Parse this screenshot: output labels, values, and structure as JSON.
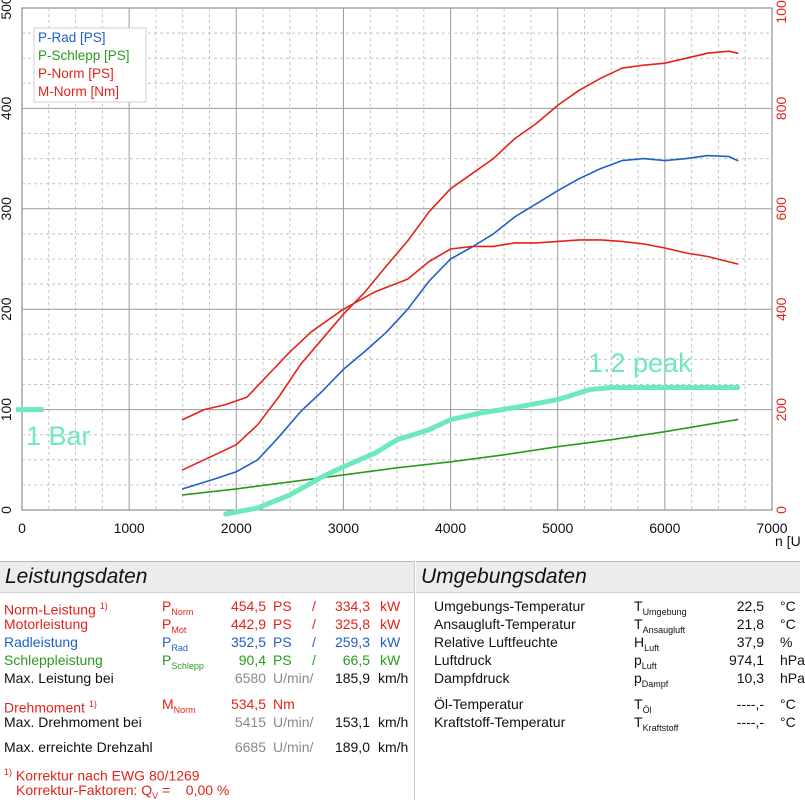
{
  "chart_data": {
    "type": "line",
    "xlabel": "n [U",
    "x_ticks": [
      "0",
      "1000",
      "2000",
      "3000",
      "4000",
      "5000",
      "6000",
      "7000"
    ],
    "y_left_ticks": [
      "0",
      "100",
      "200",
      "300",
      "400",
      "500"
    ],
    "y_right_ticks": [
      "0",
      "200",
      "400",
      "600",
      "800",
      "1000"
    ],
    "xlim": [
      0,
      7000
    ],
    "ylim_left": [
      0,
      500
    ],
    "ylim_right": [
      0,
      1000
    ],
    "grid": true,
    "legend_position": "top-left",
    "colors": {
      "rad": "#1f5fc8",
      "schlepp": "#2a9a1e",
      "norm": "#e2231a",
      "moment": "#e2231a",
      "boost": "#6ee8c0",
      "axis_right": "#e2231a"
    },
    "series": [
      {
        "name": "P-Rad [PS]",
        "axis": "left",
        "color": "#1f5fc8",
        "x": [
          1500,
          1800,
          2000,
          2200,
          2400,
          2600,
          2800,
          3000,
          3200,
          3400,
          3600,
          3800,
          4000,
          4200,
          4400,
          4600,
          4800,
          5000,
          5200,
          5400,
          5600,
          5800,
          6000,
          6200,
          6400,
          6600,
          6680
        ],
        "y": [
          21,
          31,
          38,
          50,
          73,
          98,
          118,
          140,
          158,
          177,
          200,
          228,
          250,
          262,
          275,
          292,
          305,
          318,
          330,
          340,
          348,
          350,
          348,
          350,
          353,
          352,
          348
        ]
      },
      {
        "name": "P-Schlepp [PS]",
        "axis": "left",
        "color": "#2a9a1e",
        "x": [
          1500,
          2000,
          2500,
          3000,
          3500,
          4000,
          4500,
          5000,
          5500,
          6000,
          6500,
          6680
        ],
        "y": [
          15,
          21,
          28,
          35,
          42,
          48,
          55,
          63,
          70,
          78,
          87,
          90
        ]
      },
      {
        "name": "P-Norm [PS]",
        "axis": "left",
        "color": "#e2231a",
        "x": [
          1500,
          1800,
          2000,
          2200,
          2400,
          2600,
          2800,
          3000,
          3200,
          3400,
          3600,
          3800,
          4000,
          4200,
          4400,
          4600,
          4800,
          5000,
          5200,
          5400,
          5600,
          5800,
          6000,
          6200,
          6400,
          6600,
          6680
        ],
        "y": [
          40,
          55,
          65,
          85,
          113,
          145,
          170,
          195,
          217,
          243,
          268,
          297,
          320,
          335,
          350,
          370,
          385,
          403,
          418,
          430,
          440,
          443,
          445,
          450,
          455,
          457,
          455
        ]
      },
      {
        "name": "M-Norm [Nm]",
        "axis": "right",
        "color": "#e2231a",
        "x": [
          1500,
          1700,
          1900,
          2100,
          2300,
          2500,
          2700,
          3000,
          3300,
          3600,
          3800,
          4000,
          4200,
          4400,
          4600,
          4800,
          5000,
          5200,
          5400,
          5600,
          5800,
          6000,
          6200,
          6400,
          6680
        ],
        "y": [
          180,
          200,
          210,
          225,
          270,
          315,
          355,
          400,
          435,
          460,
          495,
          520,
          525,
          525,
          532,
          532,
          535,
          538,
          538,
          535,
          530,
          522,
          512,
          505,
          490
        ]
      },
      {
        "name": "boost",
        "axis": "left",
        "color": "#6ee8c0",
        "x": [
          1900,
          2200,
          2500,
          2800,
          3000,
          3300,
          3500,
          3800,
          4000,
          4300,
          4600,
          5000,
          5300,
          5500,
          6000,
          6500,
          6680
        ],
        "y": [
          -4,
          2,
          15,
          33,
          43,
          57,
          70,
          80,
          90,
          97,
          102,
          110,
          120,
          122,
          122,
          122,
          122
        ]
      }
    ],
    "annotations": [
      "1 Bar",
      "1.2 peak"
    ]
  },
  "legend": [
    {
      "label": "P-Rad [PS]",
      "color": "#1f5fc8"
    },
    {
      "label": "P-Schlepp [PS]",
      "color": "#2a9a1e"
    },
    {
      "label": "P-Norm [PS]",
      "color": "#e2231a"
    },
    {
      "label": "M-Norm [Nm]",
      "color": "#e2231a"
    }
  ],
  "annotations": {
    "bar": "1 Bar",
    "peak": "1.2 peak"
  },
  "leistung": {
    "title": "Leistungsdaten",
    "norm": {
      "label": "Norm-Leistung",
      "footnote": "1)",
      "sym": "P",
      "sub": "Norm",
      "ps": "454,5",
      "ps_unit": "PS",
      "sep": "/",
      "kw": "334,3",
      "kw_unit": "kW"
    },
    "motor": {
      "label": "Motorleistung",
      "sym": "P",
      "sub": "Mot",
      "ps": "442,9",
      "ps_unit": "PS",
      "sep": "/",
      "kw": "325,8",
      "kw_unit": "kW"
    },
    "rad": {
      "label": "Radleistung",
      "sym": "P",
      "sub": "Rad",
      "ps": "352,5",
      "ps_unit": "PS",
      "sep": "/",
      "kw": "259,3",
      "kw_unit": "kW"
    },
    "schlepp": {
      "label": "Schleppleistung",
      "sym": "P",
      "sub": "Schlepp",
      "ps": "90,4",
      "ps_unit": "PS",
      "sep": "/",
      "kw": "66,5",
      "kw_unit": "kW"
    },
    "max_bei": {
      "label": "Max. Leistung bei",
      "rpm": "6580",
      "rpm_unit": "U/min/",
      "kmh": "185,9",
      "kmh_unit": "km/h"
    },
    "moment": {
      "label": "Drehmoment",
      "footnote": "1)",
      "sym": "M",
      "sub": "Norm",
      "nm": "534,5",
      "nm_unit": "Nm"
    },
    "moment_bei": {
      "label": "Max. Drehmoment bei",
      "rpm": "5415",
      "rpm_unit": "U/min/",
      "kmh": "153,1",
      "kmh_unit": "km/h"
    },
    "drehzahl": {
      "label": "Max. erreichte Drehzahl",
      "rpm": "6685",
      "rpm_unit": "U/min/",
      "kmh": "189,0",
      "kmh_unit": "km/h"
    },
    "korrektur": {
      "footnote": "1)",
      "text": "Korrektur nach EWG 80/1269",
      "faktor_label": "Korrektur-Faktoren: Q",
      "faktor_sub": "V",
      "faktor_value": "=    0,00 %"
    }
  },
  "umgebung": {
    "title": "Umgebungsdaten",
    "rows": [
      {
        "label": "Umgebungs-Temperatur",
        "sym": "T",
        "sub": "Umgebung",
        "value": "22,5",
        "unit": "°C"
      },
      {
        "label": "Ansaugluft-Temperatur",
        "sym": "T",
        "sub": "Ansaugluft",
        "value": "21,8",
        "unit": "°C"
      },
      {
        "label": "Relative Luftfeuchte",
        "sym": "H",
        "sub": "Luft",
        "value": "37,9",
        "unit": "%"
      },
      {
        "label": "Luftdruck",
        "sym": "p",
        "sub": "Luft",
        "value": "974,1",
        "unit": "hPa"
      },
      {
        "label": "Dampfdruck",
        "sym": "p",
        "sub": "Dampf",
        "value": "10,3",
        "unit": "hPa"
      },
      {
        "label": "Öl-Temperatur",
        "sym": "T",
        "sub": "Öl",
        "value": "----,-",
        "unit": "°C"
      },
      {
        "label": "Kraftstoff-Temperatur",
        "sym": "T",
        "sub": "Kraftstoff",
        "value": "----,-",
        "unit": "°C"
      }
    ]
  }
}
